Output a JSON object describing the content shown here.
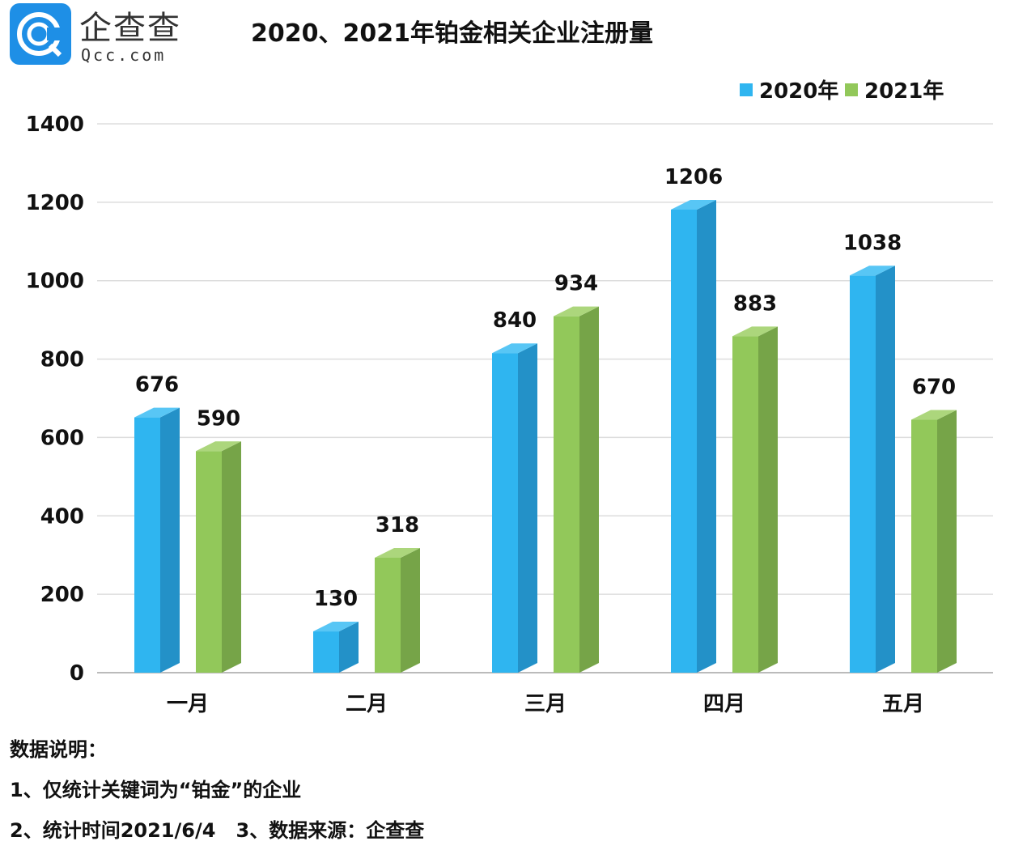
{
  "logo": {
    "name": "企查查",
    "domain": "Qcc.com"
  },
  "chart_data": {
    "type": "bar",
    "title": "2020、2021年铂金相关企业注册量",
    "categories": [
      "一月",
      "二月",
      "三月",
      "四月",
      "五月"
    ],
    "series": [
      {
        "name": "2020年",
        "values": [
          676,
          130,
          840,
          1206,
          1038
        ],
        "color": "#2fb5f0"
      },
      {
        "name": "2021年",
        "values": [
          590,
          318,
          934,
          883,
          670
        ],
        "color": "#92c85a"
      }
    ],
    "yticks": [
      0,
      200,
      400,
      600,
      800,
      1000,
      1200,
      1400
    ],
    "ylim": [
      0,
      1400
    ],
    "grid": true,
    "legend": "top-right",
    "style": "3d"
  },
  "notes": [
    "数据说明：",
    "1、仅统计关键词为“铂金”的企业",
    "2、统计时间2021/6/4   3、数据来源：企查查"
  ]
}
